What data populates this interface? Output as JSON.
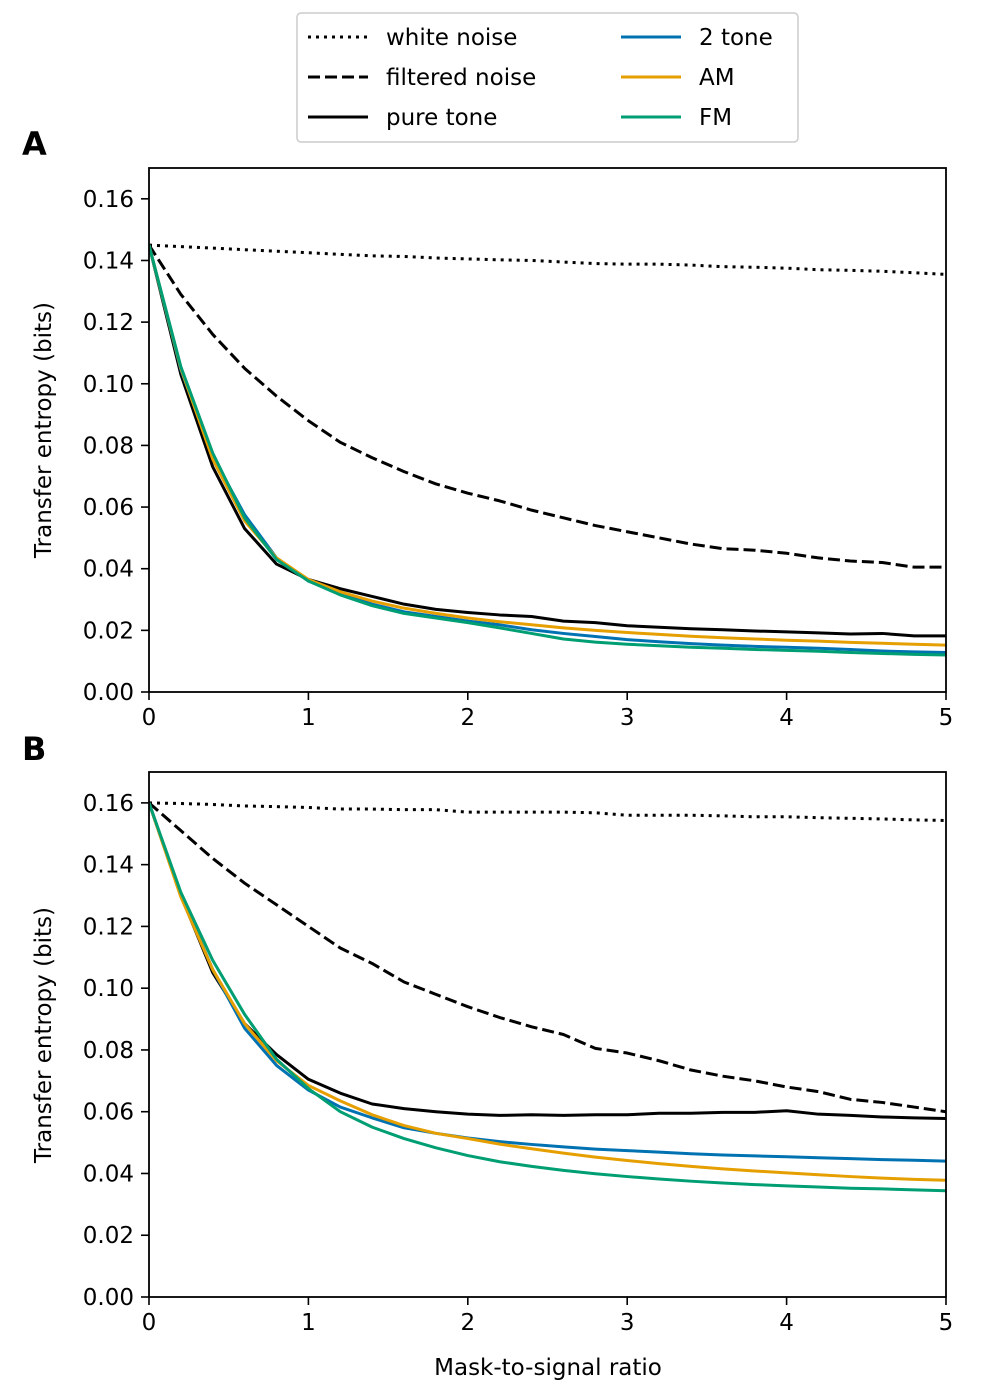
{
  "chart_data": [
    {
      "panel": "A",
      "type": "line",
      "xlabel": "",
      "ylabel": "Transfer entropy (bits)",
      "xlim": [
        0,
        5
      ],
      "ylim": [
        0,
        0.17
      ],
      "xticks": [
        0,
        1,
        2,
        3,
        4,
        5
      ],
      "xtick_labels": [
        "0",
        "1",
        "2",
        "3",
        "4",
        "5"
      ],
      "yticks": [
        0,
        0.02,
        0.04,
        0.06,
        0.08,
        0.1,
        0.12,
        0.14,
        0.16
      ],
      "ytick_labels": [
        "0.00",
        "0.02",
        "0.04",
        "0.06",
        "0.08",
        "0.10",
        "0.12",
        "0.14",
        "0.16"
      ],
      "x": [
        0,
        0.2,
        0.4,
        0.6,
        0.8,
        1.0,
        1.2,
        1.4,
        1.6,
        1.8,
        2.0,
        2.2,
        2.4,
        2.6,
        2.8,
        3.0,
        3.2,
        3.4,
        3.6,
        3.8,
        4.0,
        4.2,
        4.4,
        4.6,
        4.8,
        5.0
      ],
      "series": [
        {
          "name": "white noise",
          "style": "dotted",
          "color": "#000000",
          "values": [
            0.145,
            0.1445,
            0.144,
            0.1435,
            0.143,
            0.1425,
            0.142,
            0.1415,
            0.1413,
            0.1408,
            0.1405,
            0.1402,
            0.14,
            0.1395,
            0.139,
            0.1388,
            0.1388,
            0.1385,
            0.138,
            0.1378,
            0.1375,
            0.137,
            0.1368,
            0.1365,
            0.136,
            0.1355
          ]
        },
        {
          "name": "filtered noise",
          "style": "dashed",
          "color": "#000000",
          "values": [
            0.145,
            0.129,
            0.116,
            0.105,
            0.096,
            0.088,
            0.081,
            0.076,
            0.0715,
            0.0675,
            0.0645,
            0.062,
            0.059,
            0.0565,
            0.054,
            0.052,
            0.05,
            0.048,
            0.0465,
            0.046,
            0.045,
            0.0435,
            0.0425,
            0.042,
            0.0405,
            0.0405
          ]
        },
        {
          "name": "pure tone",
          "style": "solid",
          "color": "#000000",
          "values": [
            0.145,
            0.103,
            0.073,
            0.053,
            0.0415,
            0.0365,
            0.0335,
            0.031,
            0.0285,
            0.0268,
            0.0258,
            0.025,
            0.0245,
            0.023,
            0.0225,
            0.0215,
            0.021,
            0.0205,
            0.0202,
            0.0198,
            0.0195,
            0.0192,
            0.0188,
            0.019,
            0.0182,
            0.0182
          ]
        },
        {
          "name": "2 tone",
          "style": "solid",
          "color": "#0072B2",
          "values": [
            0.145,
            0.1045,
            0.0765,
            0.0575,
            0.0435,
            0.036,
            0.032,
            0.0285,
            0.026,
            0.0245,
            0.023,
            0.0218,
            0.0202,
            0.019,
            0.018,
            0.017,
            0.0163,
            0.0157,
            0.0152,
            0.0148,
            0.0145,
            0.0142,
            0.0138,
            0.0133,
            0.013,
            0.0128
          ]
        },
        {
          "name": "AM",
          "style": "solid",
          "color": "#E69F00",
          "values": [
            0.145,
            0.105,
            0.0755,
            0.0555,
            0.0435,
            0.0365,
            0.0325,
            0.0295,
            0.0272,
            0.0255,
            0.024,
            0.0228,
            0.0218,
            0.0208,
            0.02,
            0.0193,
            0.0187,
            0.0181,
            0.0176,
            0.0172,
            0.0168,
            0.0165,
            0.0161,
            0.0158,
            0.0155,
            0.0152
          ]
        },
        {
          "name": "FM",
          "style": "solid",
          "color": "#009E73",
          "values": [
            0.145,
            0.1055,
            0.0775,
            0.0565,
            0.043,
            0.036,
            0.0315,
            0.028,
            0.0255,
            0.024,
            0.0225,
            0.0208,
            0.019,
            0.0172,
            0.0162,
            0.0155,
            0.015,
            0.0145,
            0.0142,
            0.0138,
            0.0135,
            0.0132,
            0.0128,
            0.0125,
            0.0122,
            0.012
          ]
        }
      ]
    },
    {
      "panel": "B",
      "type": "line",
      "xlabel": "Mask-to-signal ratio",
      "ylabel": "Transfer entropy (bits)",
      "xlim": [
        0,
        5
      ],
      "ylim": [
        0,
        0.17
      ],
      "xticks": [
        0,
        1,
        2,
        3,
        4,
        5
      ],
      "xtick_labels": [
        "0",
        "1",
        "2",
        "3",
        "4",
        "5"
      ],
      "yticks": [
        0,
        0.02,
        0.04,
        0.06,
        0.08,
        0.1,
        0.12,
        0.14,
        0.16
      ],
      "ytick_labels": [
        "0.00",
        "0.02",
        "0.04",
        "0.06",
        "0.08",
        "0.10",
        "0.12",
        "0.14",
        "0.16"
      ],
      "x": [
        0,
        0.2,
        0.4,
        0.6,
        0.8,
        1.0,
        1.2,
        1.4,
        1.6,
        1.8,
        2.0,
        2.2,
        2.4,
        2.6,
        2.8,
        3.0,
        3.2,
        3.4,
        3.6,
        3.8,
        4.0,
        4.2,
        4.4,
        4.6,
        4.8,
        5.0
      ],
      "series": [
        {
          "name": "white noise",
          "style": "dotted",
          "color": "#000000",
          "values": [
            0.16,
            0.1598,
            0.1595,
            0.159,
            0.1588,
            0.1585,
            0.158,
            0.158,
            0.1578,
            0.1578,
            0.157,
            0.157,
            0.157,
            0.157,
            0.1568,
            0.156,
            0.156,
            0.156,
            0.1558,
            0.1555,
            0.1555,
            0.1552,
            0.155,
            0.1548,
            0.1545,
            0.1543
          ]
        },
        {
          "name": "filtered noise",
          "style": "dashed",
          "color": "#000000",
          "values": [
            0.16,
            0.151,
            0.142,
            0.134,
            0.127,
            0.12,
            0.113,
            0.108,
            0.102,
            0.098,
            0.094,
            0.0905,
            0.0875,
            0.085,
            0.0805,
            0.079,
            0.0765,
            0.0735,
            0.0715,
            0.07,
            0.068,
            0.0665,
            0.064,
            0.063,
            0.0615,
            0.06
          ]
        },
        {
          "name": "pure tone",
          "style": "solid",
          "color": "#000000",
          "values": [
            0.16,
            0.13,
            0.105,
            0.0885,
            0.0785,
            0.0705,
            0.066,
            0.0625,
            0.061,
            0.06,
            0.0592,
            0.0588,
            0.059,
            0.0588,
            0.059,
            0.059,
            0.0595,
            0.0595,
            0.0598,
            0.0598,
            0.0603,
            0.0592,
            0.0588,
            0.0583,
            0.058,
            0.0578
          ]
        },
        {
          "name": "2 tone",
          "style": "solid",
          "color": "#0072B2",
          "values": [
            0.16,
            0.13,
            0.106,
            0.087,
            0.075,
            0.067,
            0.0615,
            0.058,
            0.0548,
            0.053,
            0.0515,
            0.0503,
            0.0494,
            0.0486,
            0.0479,
            0.0474,
            0.0469,
            0.0464,
            0.046,
            0.0457,
            0.0454,
            0.0451,
            0.0448,
            0.0445,
            0.0443,
            0.044
          ]
        },
        {
          "name": "AM",
          "style": "solid",
          "color": "#E69F00",
          "values": [
            0.16,
            0.1295,
            0.106,
            0.0885,
            0.0765,
            0.0685,
            0.0635,
            0.059,
            0.0555,
            0.053,
            0.0513,
            0.0495,
            0.048,
            0.0466,
            0.0453,
            0.0442,
            0.0432,
            0.0423,
            0.0415,
            0.0408,
            0.0402,
            0.0396,
            0.039,
            0.0385,
            0.0381,
            0.0378
          ]
        },
        {
          "name": "FM",
          "style": "solid",
          "color": "#009E73",
          "values": [
            0.16,
            0.131,
            0.109,
            0.0915,
            0.077,
            0.0675,
            0.06,
            0.055,
            0.0513,
            0.0483,
            0.0458,
            0.0438,
            0.0423,
            0.041,
            0.0399,
            0.039,
            0.0382,
            0.0375,
            0.0369,
            0.0364,
            0.036,
            0.0356,
            0.0352,
            0.035,
            0.0347,
            0.0344
          ]
        }
      ]
    }
  ],
  "legend": {
    "columns": [
      [
        "white noise",
        "filtered noise",
        "pure tone"
      ],
      [
        "2 tone",
        "AM",
        "FM"
      ]
    ]
  }
}
